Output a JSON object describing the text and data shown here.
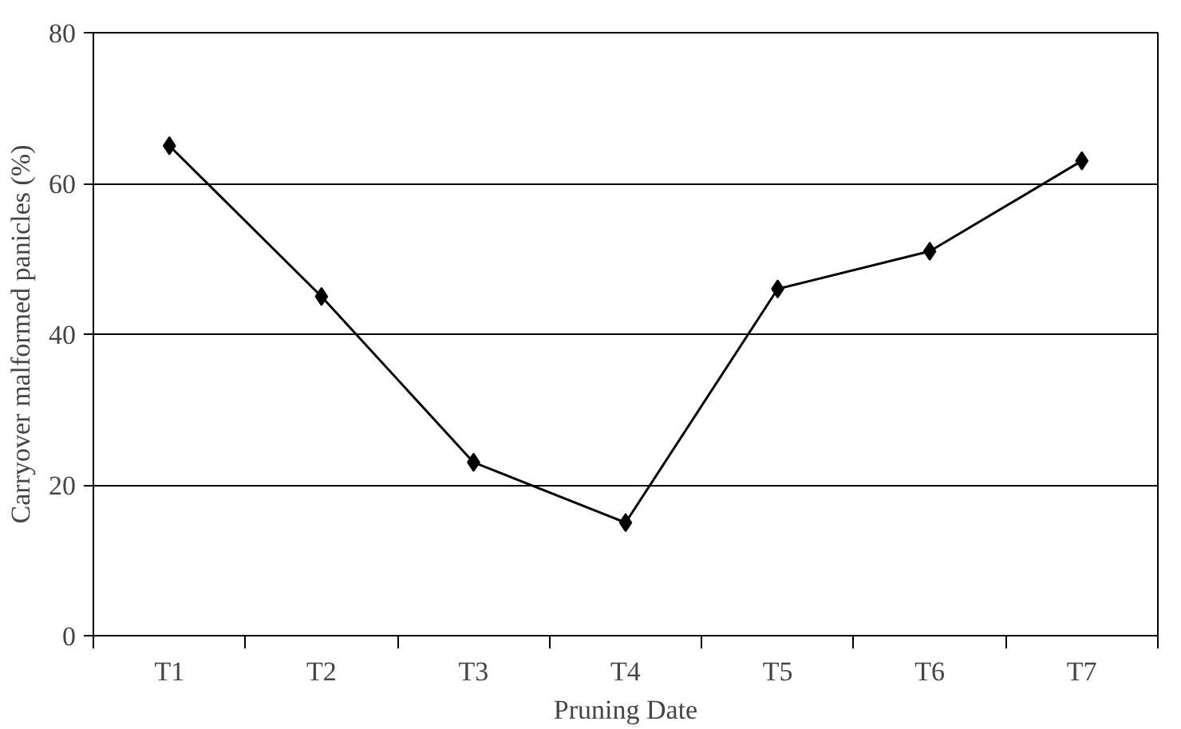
{
  "chart_data": {
    "type": "line",
    "xlabel": "Pruning Date",
    "ylabel": "Carryover malformed panicles (%)",
    "categories": [
      "T1",
      "T2",
      "T3",
      "T4",
      "T5",
      "T6",
      "T7"
    ],
    "series": [
      {
        "color": "#000000",
        "values": [
          65,
          45,
          23,
          15,
          46,
          51,
          63
        ]
      }
    ],
    "ylim": [
      0,
      80
    ],
    "yticks": [
      0,
      20,
      40,
      60,
      80
    ],
    "grid": "y",
    "marker": "diamond",
    "line_style": "solid"
  }
}
